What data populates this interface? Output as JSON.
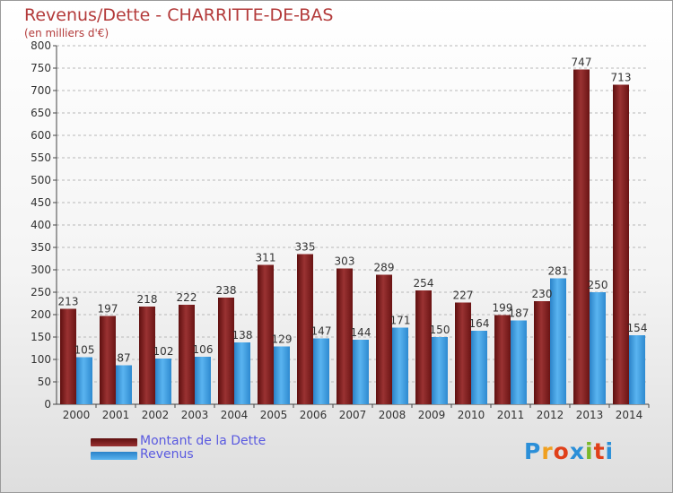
{
  "title": "Revenus/Dette - CHARRITTE-DE-BAS",
  "subtitle": "(en milliers d'€)",
  "logo": {
    "letters": [
      "P",
      "r",
      "o",
      "x",
      "i",
      "t",
      "i"
    ],
    "colors": [
      "#2b8fd8",
      "#f0a020",
      "#e0401a",
      "#2b8fd8",
      "#7ab82a",
      "#e0401a",
      "#2b8fd8"
    ]
  },
  "colors": {
    "dette": "#7a1e1e",
    "revenus": "#3a9be0"
  },
  "chart_data": {
    "type": "bar",
    "categories": [
      "2000",
      "2001",
      "2002",
      "2003",
      "2004",
      "2005",
      "2006",
      "2007",
      "2008",
      "2009",
      "2010",
      "2011",
      "2012",
      "2013",
      "2014"
    ],
    "series": [
      {
        "name": "Montant de la Dette",
        "values": [
          213,
          197,
          218,
          222,
          238,
          311,
          335,
          303,
          289,
          254,
          227,
          199,
          230,
          747,
          713
        ]
      },
      {
        "name": "Revenus",
        "values": [
          105,
          87,
          102,
          106,
          138,
          129,
          147,
          144,
          171,
          150,
          164,
          187,
          281,
          250,
          154
        ]
      }
    ],
    "ylim": [
      0,
      800
    ],
    "yticks": [
      0,
      50,
      100,
      150,
      200,
      250,
      300,
      350,
      400,
      450,
      500,
      550,
      600,
      650,
      700,
      750,
      800
    ],
    "grid": true,
    "legend": "bottom-left"
  }
}
